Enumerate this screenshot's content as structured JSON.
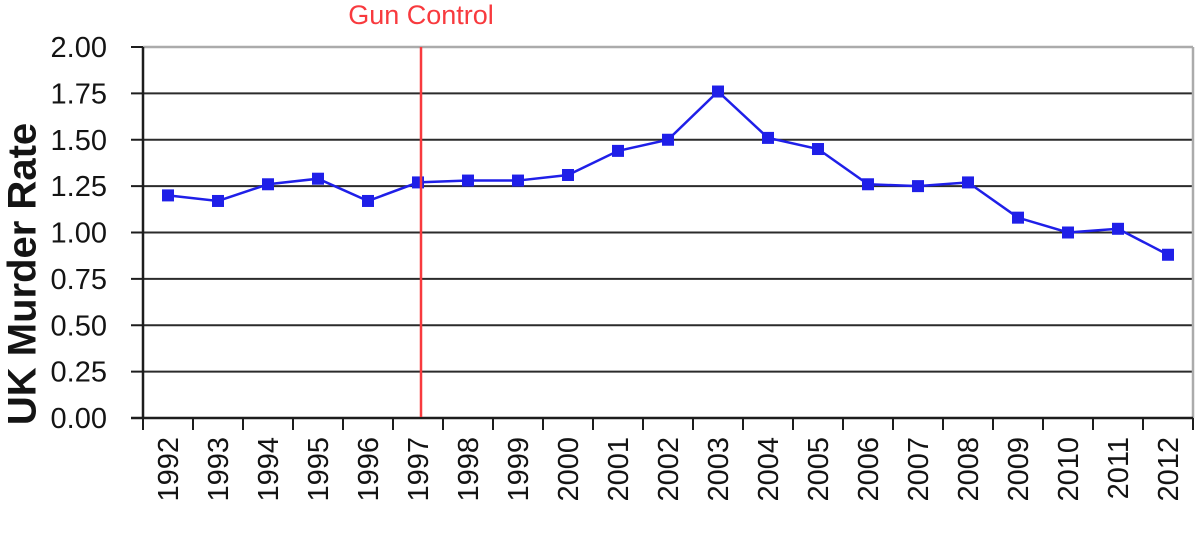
{
  "chart_data": {
    "type": "line",
    "title": "",
    "ylabel": "UK Murder Rate",
    "xlabel": "",
    "annotation": {
      "label": "Gun Control",
      "category": "1997",
      "color": "#f83a3e"
    },
    "categories": [
      "1992",
      "1993",
      "1994",
      "1995",
      "1996",
      "1997",
      "1998",
      "1999",
      "2000",
      "2001",
      "2002",
      "2003",
      "2004",
      "2005",
      "2006",
      "2007",
      "2008",
      "2009",
      "2010",
      "2011",
      "2012"
    ],
    "series": [
      {
        "name": "UK Murder Rate",
        "color": "#1f1fe8",
        "marker": "square",
        "values": [
          1.2,
          1.17,
          1.26,
          1.29,
          1.17,
          1.27,
          1.28,
          1.28,
          1.31,
          1.44,
          1.5,
          1.76,
          1.51,
          1.45,
          1.26,
          1.25,
          1.27,
          1.08,
          1.0,
          1.02,
          0.88
        ]
      }
    ],
    "ylim": [
      0,
      2
    ],
    "ytick_step": 0.25,
    "ytick_decimals": 2,
    "grid": "horizontal",
    "legend_position": "none"
  },
  "colors": {
    "grid": "#2b2b2b",
    "axis": "#1d1d1d",
    "frame": "#ababab",
    "label_text": "#141414",
    "background": "#ffffff"
  }
}
